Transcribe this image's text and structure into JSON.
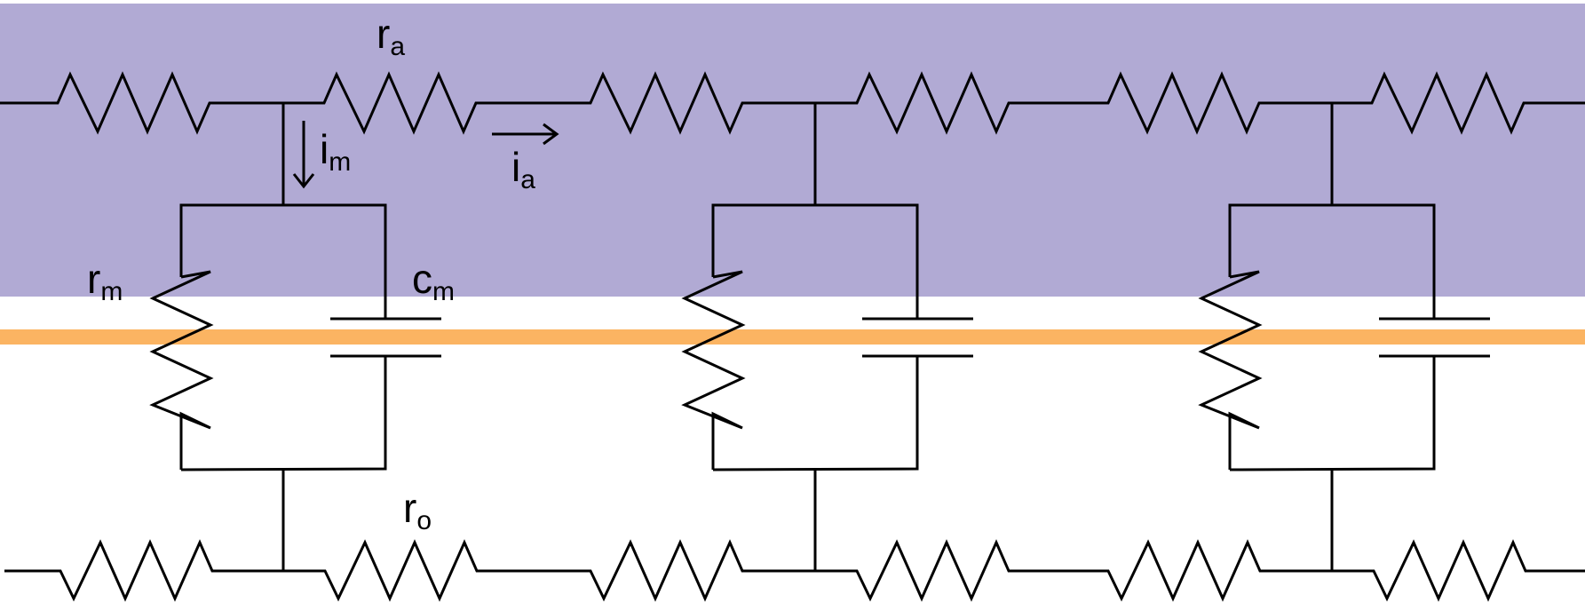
{
  "colors": {
    "axon_interior": "#b1aad4",
    "membrane": "#fbb462",
    "exterior": "#ffffff",
    "wire": "#000000"
  },
  "labels": {
    "axial_resistance": {
      "symbol": "r",
      "subscript": "a"
    },
    "membrane_current": {
      "symbol": "i",
      "subscript": "m"
    },
    "axial_current": {
      "symbol": "i",
      "subscript": "a"
    },
    "membrane_resistance": {
      "symbol": "r",
      "subscript": "m"
    },
    "membrane_capacitance": {
      "symbol": "c",
      "subscript": "m"
    },
    "outside_resistance": {
      "symbol": "r",
      "subscript": "o"
    }
  },
  "circuit": {
    "segments": 3,
    "axial_resistors_inside": 6,
    "axial_resistors_outside": 6
  }
}
